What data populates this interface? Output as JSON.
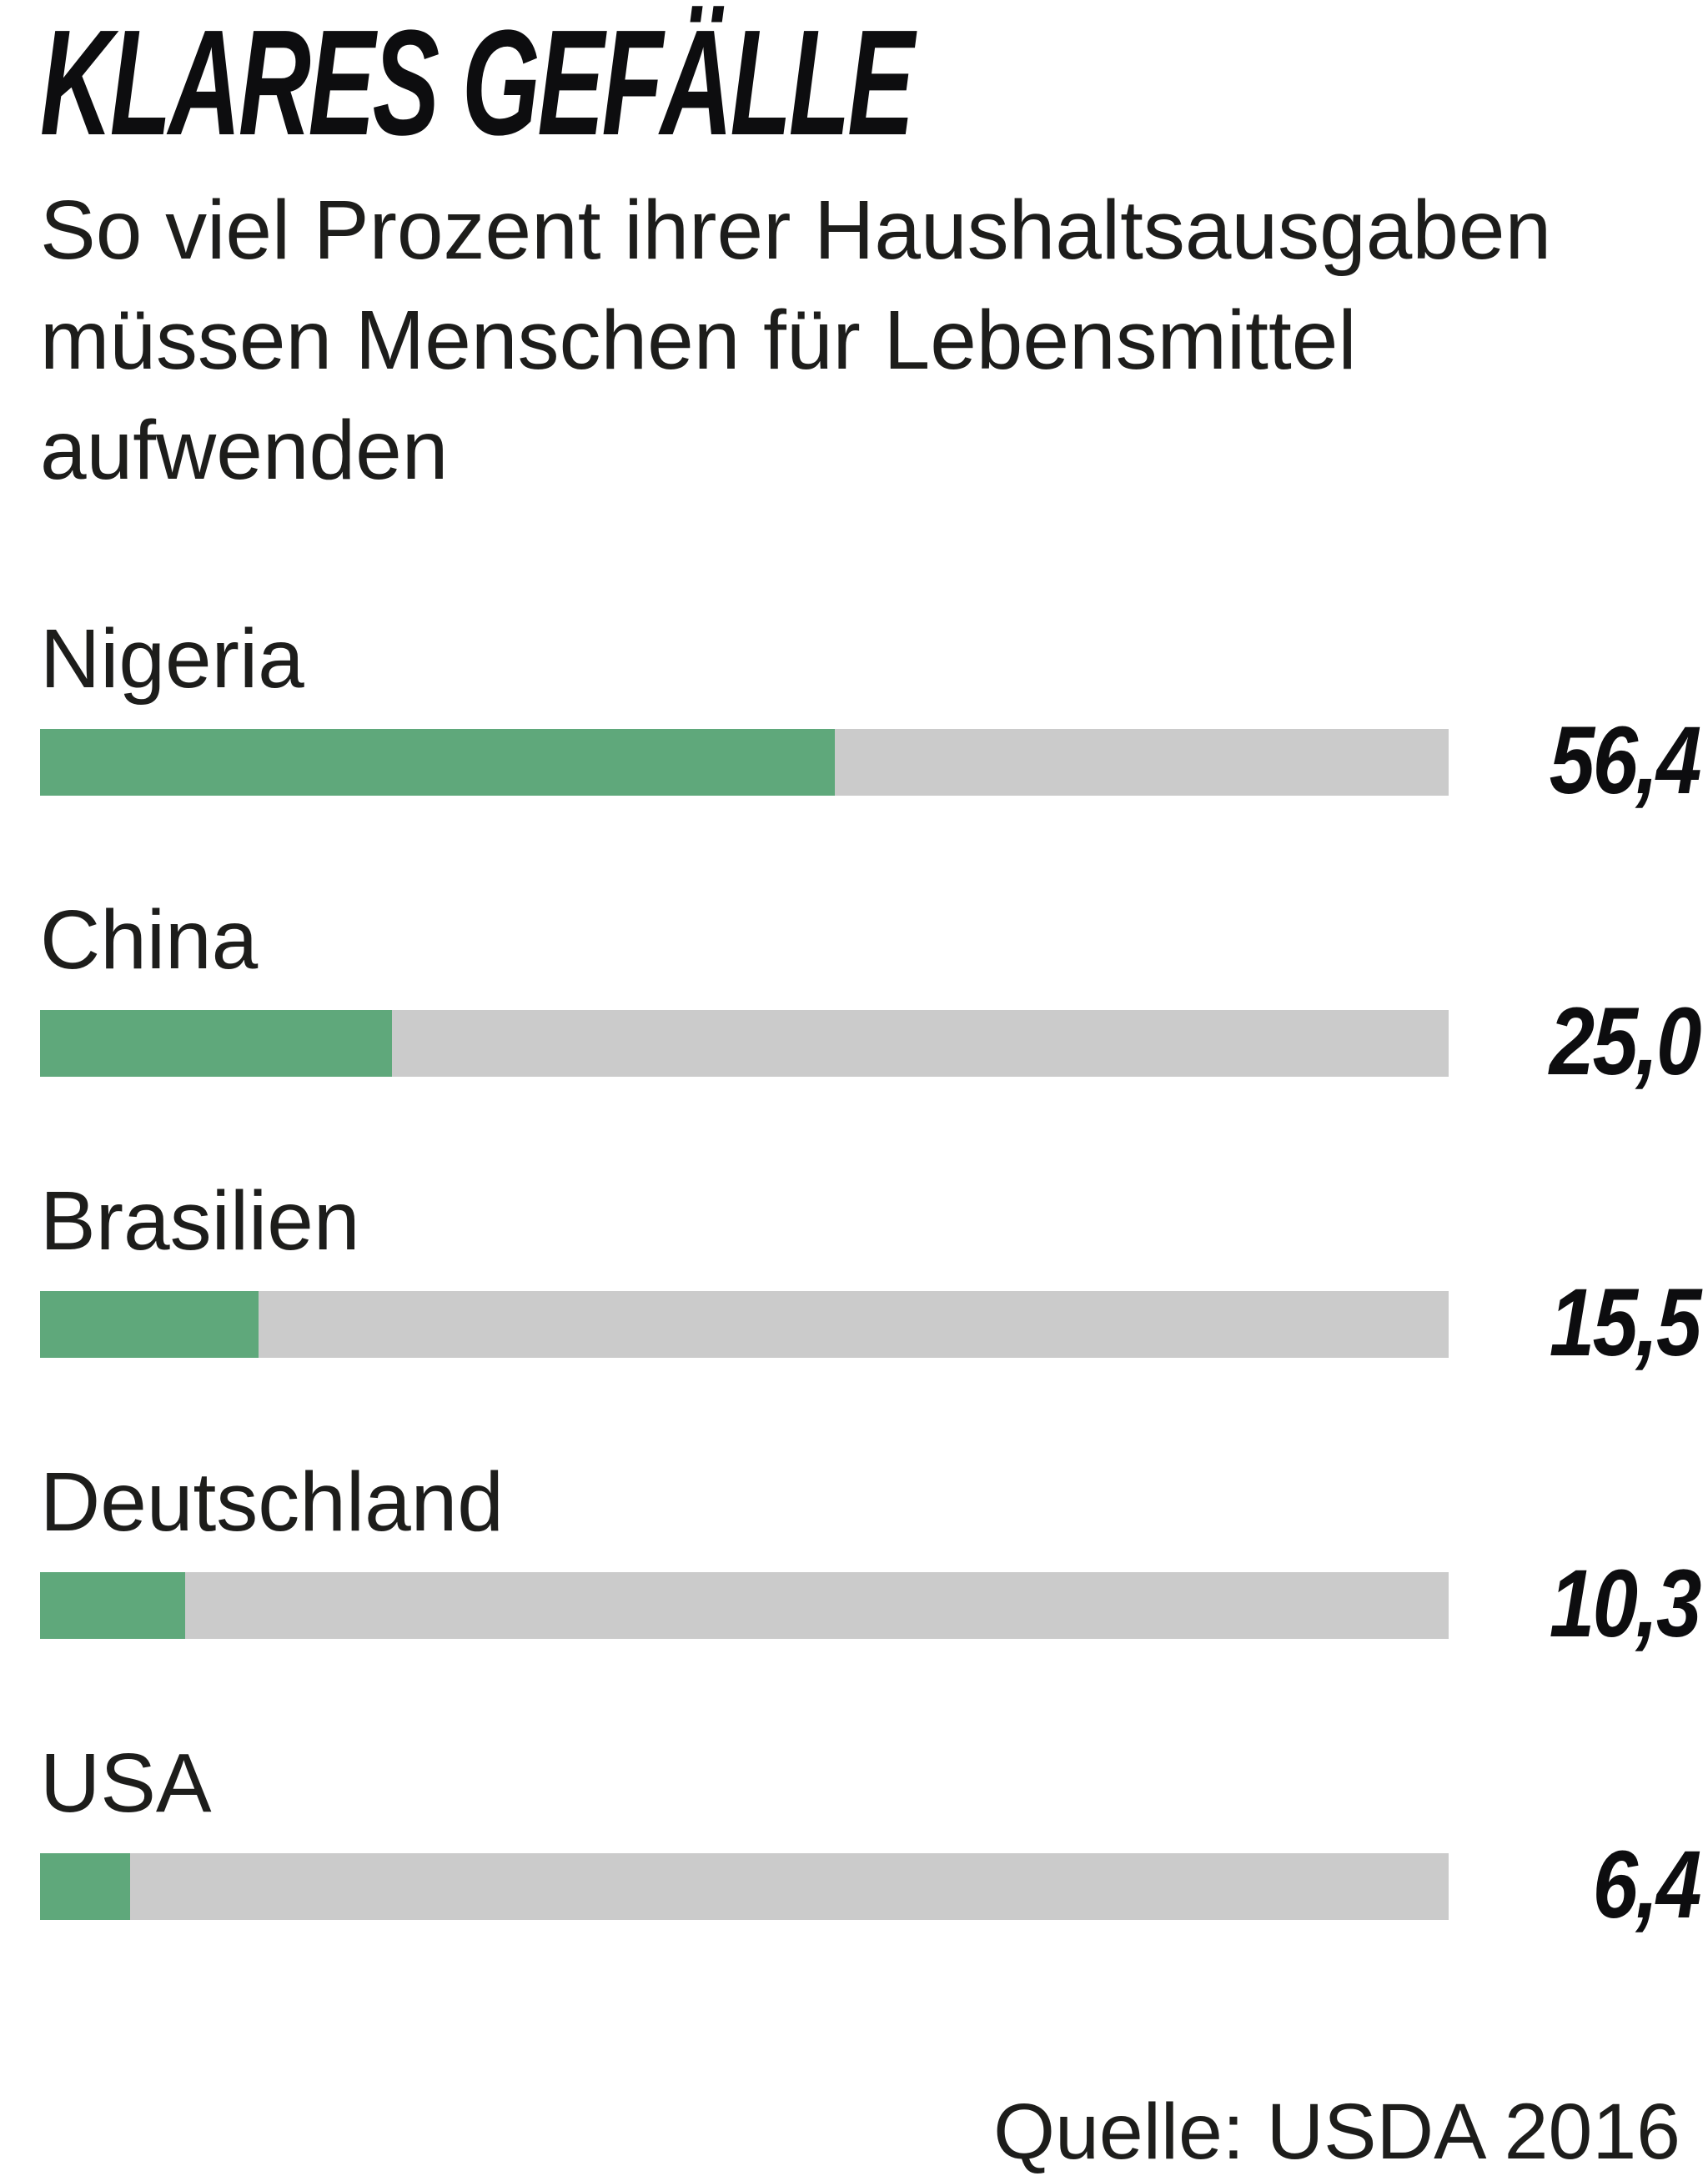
{
  "chart_data": {
    "type": "bar",
    "orientation": "horizontal",
    "title": "KLARES GEFÄLLE",
    "subtitle": "So viel Prozent ihrer Haushaltsausgaben müssen Menschen für Lebensmittel aufwenden",
    "subtitle_lines": [
      "So viel Prozent ihrer Haushaltsausgaben",
      "müssen Menschen für Lebensmittel",
      "aufwenden"
    ],
    "categories": [
      "Nigeria",
      "China",
      "Brasilien",
      "Deutschland",
      "USA"
    ],
    "values": [
      56.4,
      25.0,
      15.5,
      10.3,
      6.4
    ],
    "value_labels": [
      "56,4",
      "25,0",
      "15,5",
      "10,3",
      "6,4"
    ],
    "xlim": [
      0,
      100
    ],
    "unit": "Prozent",
    "source": "Quelle: USDA 2016",
    "legend": "none",
    "grid": false,
    "colors": {
      "bar_fill": "#5fa87b",
      "bar_track": "#cbcbcb",
      "title_text": "#0d0d0f",
      "body_text": "#1d1d1b"
    },
    "rows": [
      {
        "label": "Nigeria",
        "value": 56.4,
        "value_label": "56,4"
      },
      {
        "label": "China",
        "value": 25.0,
        "value_label": "25,0"
      },
      {
        "label": "Brasilien",
        "value": 15.5,
        "value_label": "15,5"
      },
      {
        "label": "Deutschland",
        "value": 10.3,
        "value_label": "10,3"
      },
      {
        "label": "USA",
        "value": 6.4,
        "value_label": "6,4"
      }
    ]
  }
}
